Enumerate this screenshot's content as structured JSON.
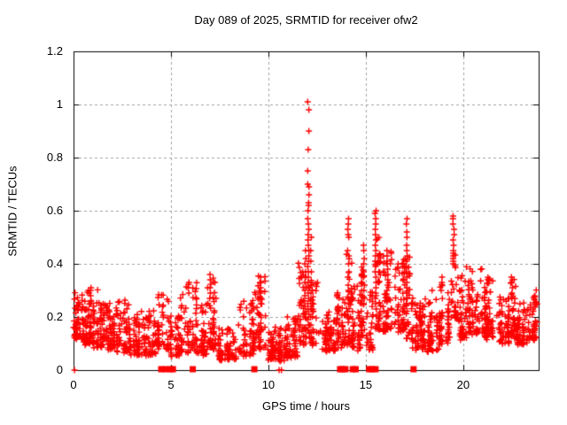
{
  "page": {
    "background": "#ffffff"
  },
  "chart_data": {
    "type": "scatter",
    "title": "Day 089 of 2025, SRMTID for receiver ofw2",
    "xlabel": "GPS time / hours",
    "ylabel": "SRMTID / TECUs",
    "xlim": [
      0,
      23.87
    ],
    "ylim": [
      0,
      1.2
    ],
    "xticks": [
      0,
      5,
      10,
      15,
      20
    ],
    "xtick_labels": [
      "0",
      "5",
      "10",
      "15",
      "20"
    ],
    "yticks": [
      0,
      0.2,
      0.4,
      0.6,
      0.8,
      1,
      1.2
    ],
    "ytick_labels": [
      "0",
      "0.2",
      "0.4",
      "0.6",
      "0.8",
      "1",
      "1.2"
    ],
    "grid": true,
    "grid_color": "#a0a0a0",
    "axis_color": "#000000",
    "marker": {
      "shape": "plus",
      "color": "#ff0000",
      "size": 7
    },
    "prng_seed": 89,
    "series": [
      {
        "name": "SRMTID",
        "envelope_segments": [
          [
            0.0,
            0.5,
            0.12,
            0.3,
            60
          ],
          [
            0.5,
            1.0,
            0.1,
            0.31,
            60
          ],
          [
            1.0,
            1.6,
            0.09,
            0.3,
            65
          ],
          [
            1.6,
            2.2,
            0.08,
            0.25,
            60
          ],
          [
            2.2,
            2.9,
            0.07,
            0.26,
            60
          ],
          [
            2.9,
            3.6,
            0.06,
            0.22,
            60
          ],
          [
            3.6,
            4.3,
            0.06,
            0.24,
            55
          ],
          [
            4.3,
            4.9,
            0.08,
            0.3,
            50
          ],
          [
            4.9,
            5.5,
            0.05,
            0.22,
            45
          ],
          [
            5.5,
            6.3,
            0.07,
            0.33,
            60
          ],
          [
            6.3,
            6.8,
            0.06,
            0.25,
            45
          ],
          [
            6.8,
            7.3,
            0.08,
            0.36,
            50
          ],
          [
            7.3,
            8.4,
            0.04,
            0.16,
            70
          ],
          [
            8.4,
            9.3,
            0.06,
            0.26,
            65
          ],
          [
            9.3,
            9.9,
            0.08,
            0.36,
            50
          ],
          [
            9.9,
            10.8,
            0.04,
            0.16,
            75
          ],
          [
            10.8,
            11.5,
            0.05,
            0.2,
            60
          ],
          [
            11.5,
            11.95,
            0.1,
            0.42,
            45
          ],
          [
            12.1,
            12.5,
            0.1,
            0.35,
            40
          ],
          [
            12.5,
            13.4,
            0.07,
            0.22,
            70
          ],
          [
            13.4,
            13.9,
            0.09,
            0.3,
            45
          ],
          [
            13.9,
            14.3,
            0.1,
            0.45,
            40
          ],
          [
            14.3,
            14.75,
            0.08,
            0.32,
            40
          ],
          [
            14.75,
            15.05,
            0.12,
            0.42,
            30
          ],
          [
            15.05,
            15.35,
            0.08,
            0.3,
            30
          ],
          [
            15.35,
            15.75,
            0.15,
            0.5,
            40
          ],
          [
            15.75,
            16.35,
            0.15,
            0.45,
            55
          ],
          [
            16.35,
            17.0,
            0.15,
            0.42,
            55
          ],
          [
            17.0,
            17.3,
            0.12,
            0.45,
            30
          ],
          [
            17.3,
            18.1,
            0.08,
            0.28,
            80
          ],
          [
            18.1,
            18.75,
            0.07,
            0.3,
            55
          ],
          [
            18.75,
            19.35,
            0.1,
            0.35,
            50
          ],
          [
            19.35,
            19.65,
            0.2,
            0.45,
            25
          ],
          [
            19.65,
            20.3,
            0.12,
            0.4,
            55
          ],
          [
            20.3,
            21.1,
            0.14,
            0.4,
            70
          ],
          [
            21.1,
            21.7,
            0.12,
            0.35,
            60
          ],
          [
            21.7,
            22.35,
            0.1,
            0.28,
            60
          ],
          [
            22.35,
            22.7,
            0.12,
            0.35,
            35
          ],
          [
            22.7,
            23.35,
            0.1,
            0.26,
            55
          ],
          [
            23.35,
            23.87,
            0.12,
            0.3,
            50
          ]
        ],
        "spike_columns": [
          {
            "x": 0.9,
            "ys": [
              0.31,
              0.3,
              0.28,
              0.26
            ]
          },
          {
            "x": 5.9,
            "ys": [
              0.33,
              0.31,
              0.29
            ]
          },
          {
            "x": 7.0,
            "ys": [
              0.36,
              0.34,
              0.31,
              0.29,
              0.27
            ]
          },
          {
            "x": 9.6,
            "ys": [
              0.35,
              0.33,
              0.31,
              0.29,
              0.27,
              0.25
            ]
          },
          {
            "x": 11.9,
            "ys": [
              0.45,
              0.42,
              0.4,
              0.37,
              0.35,
              0.33,
              0.3,
              0.28,
              0.26,
              0.24,
              0.22,
              0.2
            ]
          },
          {
            "x": 12.05,
            "ys": [
              1.01,
              0.98,
              0.9,
              0.83,
              0.75,
              0.7,
              0.69,
              0.66,
              0.63,
              0.62,
              0.6,
              0.57,
              0.55,
              0.53,
              0.51,
              0.49,
              0.47,
              0.45,
              0.43,
              0.41,
              0.39,
              0.37,
              0.35,
              0.33,
              0.31,
              0.29,
              0.27,
              0.25,
              0.23,
              0.21,
              0.19,
              0.17,
              0.15
            ]
          },
          {
            "x": 12.2,
            "ys": [
              0.5,
              0.45,
              0.41,
              0.37,
              0.33,
              0.29,
              0.26,
              0.23,
              0.2
            ]
          },
          {
            "x": 14.1,
            "ys": [
              0.57,
              0.55,
              0.53,
              0.51,
              0.5,
              0.45,
              0.43,
              0.4,
              0.37,
              0.35,
              0.32,
              0.3,
              0.27,
              0.25,
              0.22,
              0.2,
              0.18
            ]
          },
          {
            "x": 14.9,
            "ys": [
              0.47,
              0.45,
              0.42,
              0.4,
              0.37,
              0.35,
              0.32,
              0.3,
              0.27,
              0.25
            ]
          },
          {
            "x": 15.5,
            "ys": [
              0.6,
              0.59,
              0.57,
              0.55,
              0.53,
              0.51,
              0.49,
              0.47,
              0.45,
              0.43,
              0.41,
              0.39,
              0.37,
              0.35,
              0.33,
              0.31,
              0.29,
              0.27,
              0.25,
              0.23
            ]
          },
          {
            "x": 16.1,
            "ys": [
              0.45,
              0.43,
              0.41,
              0.38,
              0.36,
              0.34,
              0.32,
              0.3
            ]
          },
          {
            "x": 17.1,
            "ys": [
              0.57,
              0.55,
              0.52,
              0.5,
              0.47,
              0.45,
              0.43,
              0.41,
              0.39,
              0.37,
              0.35,
              0.33,
              0.31,
              0.29,
              0.27
            ]
          },
          {
            "x": 18.9,
            "ys": [
              0.35,
              0.33,
              0.3
            ]
          },
          {
            "x": 19.5,
            "ys": [
              0.58,
              0.57,
              0.55,
              0.53,
              0.51,
              0.49,
              0.47,
              0.45,
              0.44,
              0.43,
              0.42,
              0.41,
              0.4
            ]
          },
          {
            "x": 22.5,
            "ys": [
              0.35,
              0.33,
              0.31,
              0.29,
              0.27
            ]
          }
        ]
      }
    ],
    "zero_line_squares_x": [
      4.5,
      4.72,
      4.97,
      5.1,
      6.12,
      9.28,
      13.68,
      13.8,
      13.95,
      14.33,
      14.48,
      15.17,
      15.33,
      15.5,
      17.45
    ],
    "zero_line_plus_x": [
      0.05,
      10.55,
      10.67
    ]
  }
}
